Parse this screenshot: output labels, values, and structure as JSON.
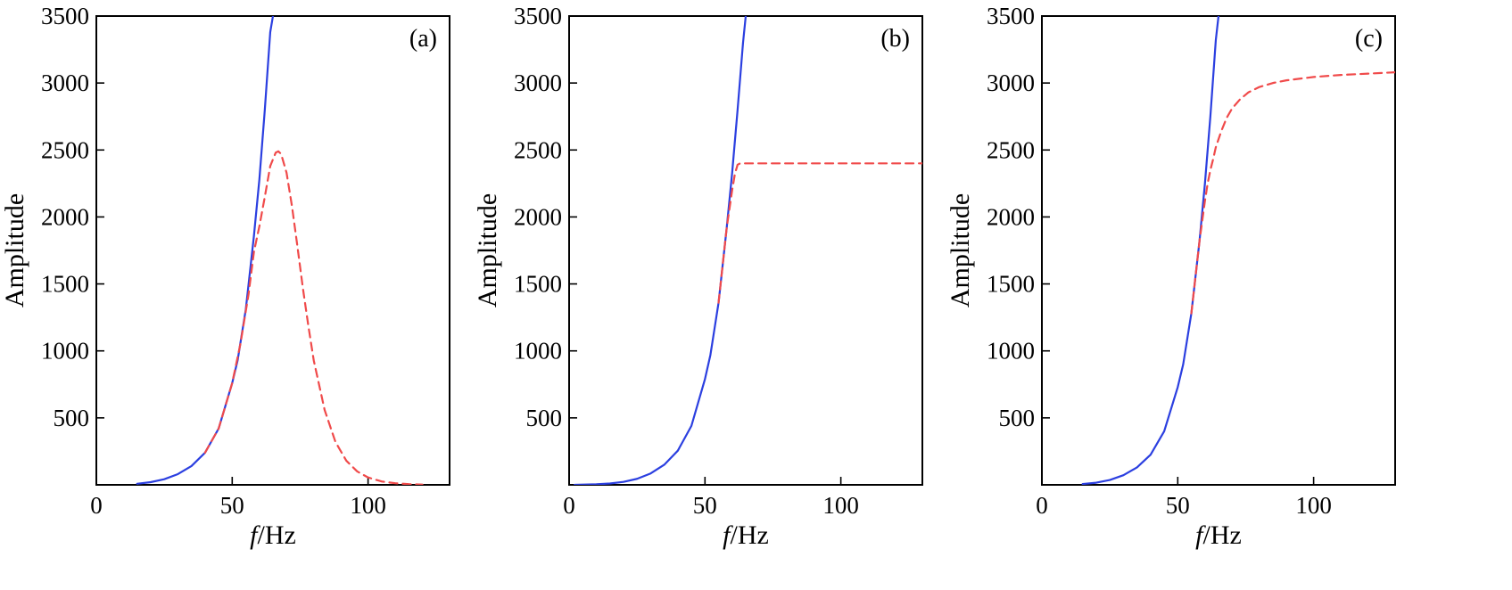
{
  "colors": {
    "series_blue": "#2b3fe0",
    "series_red": "#f04a4a",
    "axis": "#000000"
  },
  "chart_data": [
    {
      "type": "line",
      "panel_label": "(a)",
      "xlabel_italic": "f",
      "xlabel_rest": "/Hz",
      "ylabel": "Amplitude",
      "xlim": [
        0,
        130
      ],
      "ylim": [
        0,
        3500
      ],
      "xticks": [
        0,
        50,
        100
      ],
      "yticks": [
        500,
        1000,
        1500,
        2000,
        2500,
        3000,
        3500
      ],
      "grid": false,
      "series": [
        {
          "color": "#2b3fe0",
          "dash": "solid",
          "x": [
            15,
            20,
            25,
            30,
            35,
            40,
            45,
            50,
            52,
            55,
            58,
            60,
            62,
            64,
            65
          ],
          "y": [
            8,
            20,
            42,
            80,
            140,
            240,
            420,
            760,
            930,
            1310,
            1860,
            2280,
            2800,
            3380,
            3500
          ]
        },
        {
          "color": "#f04a4a",
          "dash": "dashed",
          "x": [
            40,
            45,
            50,
            53,
            56,
            58,
            60,
            62,
            64,
            66,
            67,
            68,
            70,
            72,
            74,
            76,
            78,
            80,
            84,
            88,
            92,
            96,
            100,
            105,
            110,
            115,
            120
          ],
          "y": [
            240,
            420,
            760,
            1050,
            1420,
            1740,
            1930,
            2150,
            2380,
            2480,
            2490,
            2470,
            2330,
            2080,
            1780,
            1470,
            1190,
            930,
            560,
            320,
            180,
            100,
            55,
            25,
            12,
            5,
            2
          ]
        }
      ]
    },
    {
      "type": "line",
      "panel_label": "(b)",
      "xlabel_italic": "f",
      "xlabel_rest": "/Hz",
      "ylabel": "Amplitude",
      "xlim": [
        0,
        130
      ],
      "ylim": [
        0,
        3500
      ],
      "xticks": [
        0,
        50,
        100
      ],
      "yticks": [
        500,
        1000,
        1500,
        2000,
        2500,
        3000,
        3500
      ],
      "grid": false,
      "series": [
        {
          "color": "#2b3fe0",
          "dash": "solid",
          "x": [
            2,
            10,
            15,
            20,
            25,
            30,
            35,
            40,
            45,
            50,
            52,
            55,
            58,
            60,
            62,
            64,
            65
          ],
          "y": [
            0,
            4,
            10,
            22,
            45,
            85,
            150,
            255,
            440,
            790,
            970,
            1360,
            1920,
            2330,
            2800,
            3300,
            3500
          ]
        },
        {
          "color": "#f04a4a",
          "dash": "dashed",
          "x": [
            55,
            58,
            60,
            61,
            62,
            63,
            65,
            70,
            80,
            90,
            100,
            110,
            120,
            130
          ],
          "y": [
            1360,
            1920,
            2200,
            2320,
            2390,
            2400,
            2400,
            2400,
            2400,
            2400,
            2400,
            2400,
            2400,
            2400
          ]
        }
      ]
    },
    {
      "type": "line",
      "panel_label": "(c)",
      "xlabel_italic": "f",
      "xlabel_rest": "/Hz",
      "ylabel": "Amplitude",
      "xlim": [
        0,
        130
      ],
      "ylim": [
        0,
        3500
      ],
      "xticks": [
        0,
        50,
        100
      ],
      "yticks": [
        500,
        1000,
        1500,
        2000,
        2500,
        3000,
        3500
      ],
      "grid": false,
      "series": [
        {
          "color": "#2b3fe0",
          "dash": "solid",
          "x": [
            15,
            20,
            25,
            30,
            35,
            40,
            45,
            50,
            52,
            55,
            58,
            60,
            62,
            64,
            65
          ],
          "y": [
            6,
            16,
            36,
            72,
            130,
            225,
            400,
            730,
            900,
            1280,
            1820,
            2250,
            2750,
            3320,
            3500
          ]
        },
        {
          "color": "#f04a4a",
          "dash": "dashed",
          "x": [
            55,
            58,
            60,
            61,
            62,
            63,
            64,
            66,
            68,
            70,
            73,
            76,
            80,
            85,
            90,
            100,
            110,
            120,
            130
          ],
          "y": [
            1280,
            1820,
            2120,
            2250,
            2350,
            2430,
            2520,
            2640,
            2740,
            2810,
            2880,
            2930,
            2970,
            3000,
            3020,
            3045,
            3060,
            3070,
            3080
          ]
        }
      ]
    }
  ]
}
